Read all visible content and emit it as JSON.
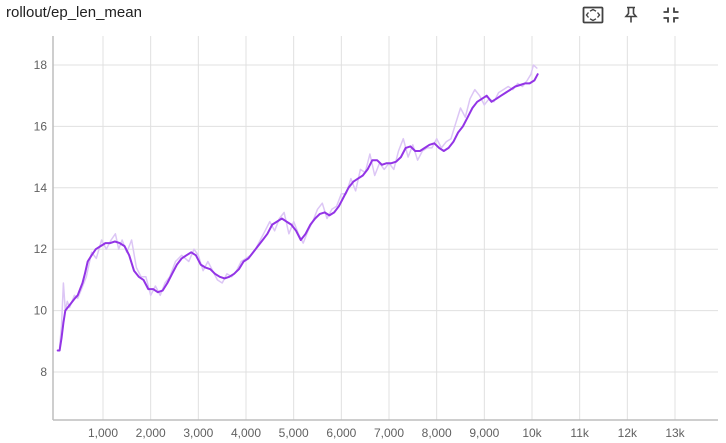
{
  "card": {
    "title": "rollout/ep_len_mean",
    "toolbar": [
      {
        "name": "fit-domain-button",
        "icon": "fit-domain-icon"
      },
      {
        "name": "pin-button",
        "icon": "pin-icon"
      },
      {
        "name": "fullscreen-button",
        "icon": "collapse-icon"
      }
    ]
  },
  "chart_data": {
    "type": "line",
    "title": "rollout/ep_len_mean",
    "xlabel": "",
    "ylabel": "",
    "xlim": [
      0,
      14000
    ],
    "ylim": [
      6.5,
      18.9
    ],
    "x_ticks": [
      {
        "value": 1000,
        "label": "1,000"
      },
      {
        "value": 2000,
        "label": "2,000"
      },
      {
        "value": 3000,
        "label": "3,000"
      },
      {
        "value": 4000,
        "label": "4,000"
      },
      {
        "value": 5000,
        "label": "5,000"
      },
      {
        "value": 6000,
        "label": "6,000"
      },
      {
        "value": 7000,
        "label": "7,000"
      },
      {
        "value": 8000,
        "label": "8,000"
      },
      {
        "value": 9000,
        "label": "9,000"
      },
      {
        "value": 10000,
        "label": "10k"
      },
      {
        "value": 11000,
        "label": "11k"
      },
      {
        "value": 12000,
        "label": "12k"
      },
      {
        "value": 13000,
        "label": "13k"
      }
    ],
    "y_ticks": [
      {
        "value": 8,
        "label": "8"
      },
      {
        "value": 10,
        "label": "10"
      },
      {
        "value": 12,
        "label": "12"
      },
      {
        "value": 14,
        "label": "14"
      },
      {
        "value": 16,
        "label": "16"
      },
      {
        "value": 18,
        "label": "18"
      }
    ],
    "grid": true,
    "colors": {
      "smoothed": "#9334e6",
      "raw": "#dcc6f5",
      "grid": "#e0e0e0",
      "axis": "#bdbdbd"
    },
    "series": [
      {
        "role": "raw",
        "x": [
          90,
          130,
          170,
          210,
          250,
          300,
          350,
          400,
          470,
          550,
          650,
          760,
          860,
          970,
          1070,
          1170,
          1260,
          1330,
          1400,
          1500,
          1600,
          1700,
          1800,
          1900,
          2000,
          2100,
          2200,
          2300,
          2400,
          2520,
          2650,
          2800,
          2910,
          3000,
          3100,
          3200,
          3300,
          3400,
          3500,
          3600,
          3700,
          3800,
          3900,
          4000,
          4100,
          4200,
          4300,
          4400,
          4500,
          4600,
          4700,
          4800,
          4900,
          5000,
          5100,
          5200,
          5300,
          5400,
          5500,
          5600,
          5700,
          5800,
          5900,
          6000,
          6100,
          6200,
          6300,
          6400,
          6500,
          6600,
          6700,
          6800,
          6900,
          7000,
          7100,
          7200,
          7300,
          7400,
          7500,
          7600,
          7700,
          7800,
          7900,
          8000,
          8100,
          8200,
          8300,
          8400,
          8500,
          8600,
          8700,
          8800,
          8900,
          9000,
          9100,
          9200,
          9300,
          9400,
          9500,
          9600,
          9700,
          9800,
          9900,
          9980,
          10030,
          10100
        ],
        "values": [
          8.8,
          9.5,
          10.9,
          10.0,
          10.3,
          10.1,
          10.3,
          10.5,
          10.4,
          10.7,
          11.1,
          11.9,
          11.7,
          12.3,
          12.0,
          12.3,
          12.5,
          12.0,
          12.3,
          11.9,
          12.3,
          11.4,
          11.1,
          11.1,
          10.5,
          10.8,
          10.5,
          10.9,
          11.1,
          11.6,
          11.8,
          11.6,
          12.0,
          11.8,
          11.3,
          11.6,
          11.3,
          11.0,
          10.9,
          11.2,
          11.1,
          11.3,
          11.6,
          11.7,
          11.8,
          12.0,
          12.3,
          12.6,
          12.9,
          12.6,
          13.0,
          13.2,
          12.5,
          12.9,
          12.5,
          12.2,
          12.6,
          12.9,
          13.3,
          13.5,
          13.0,
          13.3,
          13.4,
          13.8,
          13.8,
          14.3,
          13.9,
          14.6,
          14.5,
          15.1,
          14.4,
          14.8,
          14.6,
          14.8,
          14.6,
          15.2,
          15.6,
          15.0,
          15.4,
          14.9,
          15.2,
          15.3,
          15.3,
          15.6,
          15.3,
          15.5,
          15.6,
          16.1,
          16.6,
          16.3,
          16.9,
          17.2,
          17.0,
          16.7,
          16.9,
          16.8,
          17.1,
          17.2,
          17.3,
          17.2,
          17.4,
          17.3,
          17.5,
          17.7,
          18.0,
          17.9
        ]
      },
      {
        "role": "smoothed",
        "x": [
          50,
          90,
          130,
          170,
          210,
          260,
          310,
          360,
          410,
          470,
          520,
          570,
          620,
          680,
          760,
          850,
          950,
          1050,
          1150,
          1250,
          1350,
          1450,
          1550,
          1650,
          1750,
          1850,
          1950,
          2050,
          2150,
          2250,
          2350,
          2450,
          2550,
          2650,
          2750,
          2850,
          2950,
          3050,
          3150,
          3250,
          3350,
          3450,
          3550,
          3650,
          3750,
          3850,
          3950,
          4050,
          4150,
          4250,
          4350,
          4450,
          4550,
          4650,
          4750,
          4850,
          4950,
          5050,
          5150,
          5250,
          5350,
          5450,
          5550,
          5650,
          5750,
          5850,
          5950,
          6050,
          6150,
          6250,
          6350,
          6450,
          6550,
          6650,
          6750,
          6850,
          6950,
          7050,
          7150,
          7250,
          7350,
          7450,
          7550,
          7650,
          7750,
          7850,
          7950,
          8050,
          8150,
          8250,
          8350,
          8450,
          8550,
          8650,
          8750,
          8850,
          8950,
          9050,
          9150,
          9250,
          9350,
          9450,
          9550,
          9650,
          9750,
          9850,
          9950,
          10050,
          10120
        ],
        "values": [
          8.7,
          8.7,
          9.1,
          9.6,
          10.0,
          10.1,
          10.2,
          10.3,
          10.4,
          10.5,
          10.7,
          10.9,
          11.2,
          11.6,
          11.8,
          12.0,
          12.1,
          12.2,
          12.2,
          12.25,
          12.2,
          12.1,
          11.8,
          11.3,
          11.1,
          11.0,
          10.7,
          10.7,
          10.6,
          10.65,
          10.9,
          11.2,
          11.5,
          11.7,
          11.8,
          11.9,
          11.8,
          11.5,
          11.4,
          11.35,
          11.2,
          11.1,
          11.05,
          11.1,
          11.2,
          11.35,
          11.6,
          11.7,
          11.9,
          12.1,
          12.3,
          12.5,
          12.8,
          12.9,
          13.0,
          12.9,
          12.8,
          12.6,
          12.3,
          12.5,
          12.8,
          13.0,
          13.15,
          13.2,
          13.1,
          13.2,
          13.4,
          13.7,
          14.0,
          14.2,
          14.3,
          14.4,
          14.6,
          14.9,
          14.9,
          14.75,
          14.8,
          14.8,
          14.85,
          15.0,
          15.3,
          15.35,
          15.2,
          15.2,
          15.3,
          15.4,
          15.45,
          15.3,
          15.2,
          15.3,
          15.5,
          15.8,
          16.0,
          16.3,
          16.6,
          16.8,
          16.9,
          17.0,
          16.8,
          16.9,
          17.0,
          17.1,
          17.2,
          17.3,
          17.35,
          17.4,
          17.4,
          17.5,
          17.7
        ]
      }
    ]
  }
}
